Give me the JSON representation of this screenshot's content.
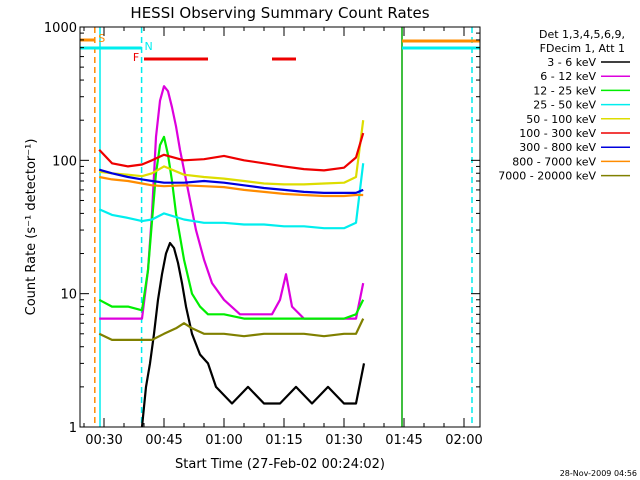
{
  "chart_data": {
    "type": "line",
    "title": "HESSI Observing Summary Count Rates",
    "xlabel": "Start Time (27-Feb-02 00:24:02)",
    "ylabel": "Count Rate (s⁻¹ detector⁻¹)",
    "y_scale": "log",
    "ylim": [
      1,
      1000
    ],
    "xlim": [
      24,
      124
    ],
    "x_unit": "minutes after 00:00 UT",
    "x_ticks": [
      {
        "value": 30,
        "label": "00:30"
      },
      {
        "value": 45,
        "label": "00:45"
      },
      {
        "value": 60,
        "label": "01:00"
      },
      {
        "value": 75,
        "label": "01:15"
      },
      {
        "value": 90,
        "label": "01:30"
      },
      {
        "value": 105,
        "label": "01:45"
      },
      {
        "value": 120,
        "label": "02:00"
      }
    ],
    "y_ticks": [
      {
        "value": 1,
        "label": "1"
      },
      {
        "value": 10,
        "label": "10"
      },
      {
        "value": 100,
        "label": "100"
      },
      {
        "value": 1000,
        "label": "1000"
      }
    ],
    "legend": {
      "placement": "right",
      "header": [
        "Det 1,3,4,5,6,9,",
        "FDecim 1, Att 1"
      ]
    },
    "series": [
      {
        "name": "3 - 6 keV",
        "color": "#000000",
        "x": [
          39.5,
          40.5,
          41.5,
          42.5,
          43.5,
          44.5,
          45.5,
          46.5,
          47.5,
          48.5,
          49.5,
          50.5,
          52,
          54,
          56,
          58,
          62,
          66,
          70,
          74,
          78,
          82,
          86,
          90,
          93,
          95
        ],
        "y": [
          1.0,
          2.0,
          3.0,
          5.0,
          9.0,
          14.0,
          20.0,
          24.0,
          22.0,
          17.0,
          12.0,
          8.0,
          5.0,
          3.5,
          3.0,
          2.0,
          1.5,
          2.0,
          1.5,
          1.5,
          2.0,
          1.5,
          2.0,
          1.5,
          1.5,
          3.0
        ]
      },
      {
        "name": "6 - 12 keV",
        "color": "#dd00dd",
        "x": [
          28.8,
          32,
          36,
          39.5,
          41,
          42,
          43,
          44,
          45,
          46,
          47,
          48,
          49,
          51,
          53,
          55,
          57,
          60,
          64,
          68,
          72,
          74,
          75.5,
          77,
          80,
          85,
          90,
          93,
          94.8
        ],
        "y": [
          6.5,
          6.5,
          6.5,
          6.5,
          15.0,
          40.0,
          150.0,
          280.0,
          360.0,
          330.0,
          250.0,
          180.0,
          120.0,
          60.0,
          30.0,
          18.0,
          12.0,
          9.0,
          7.0,
          7.0,
          7.0,
          9.0,
          14.0,
          8.0,
          6.5,
          6.5,
          6.5,
          6.5,
          12.0
        ]
      },
      {
        "name": "12 - 25 keV",
        "color": "#00ee00",
        "x": [
          28.8,
          32,
          36,
          39.5,
          41,
          42,
          43,
          44,
          45,
          46,
          47,
          48,
          50,
          52,
          54,
          56,
          60,
          65,
          70,
          75,
          80,
          85,
          90,
          93,
          94.8
        ],
        "y": [
          9.0,
          8.0,
          8.0,
          7.5,
          15.0,
          35.0,
          80.0,
          130.0,
          150.0,
          110.0,
          70.0,
          40.0,
          18.0,
          10.0,
          8.0,
          7.0,
          7.0,
          6.5,
          6.5,
          6.5,
          6.5,
          6.5,
          6.5,
          7.0,
          9.0
        ]
      },
      {
        "name": "25 - 50 keV",
        "color": "#00eeee",
        "x": [
          28.8,
          32,
          36,
          39.5,
          42,
          45,
          50,
          55,
          60,
          65,
          70,
          75,
          80,
          85,
          90,
          93,
          94.8
        ],
        "y": [
          43.0,
          39.0,
          37.0,
          35.0,
          36.0,
          40.0,
          36.0,
          34.0,
          34.0,
          33.0,
          33.0,
          32.0,
          32.0,
          31.0,
          31.0,
          34.0,
          95.0
        ]
      },
      {
        "name": "50 - 100 keV",
        "color": "#dddd00",
        "x": [
          28.8,
          32,
          36,
          39.5,
          42,
          45,
          50,
          55,
          60,
          65,
          70,
          75,
          80,
          85,
          90,
          93,
          94.8
        ],
        "y": [
          82.0,
          80.0,
          78.0,
          76.0,
          80.0,
          90.0,
          78.0,
          75.0,
          73.0,
          70.0,
          67.0,
          66.0,
          66.0,
          67.0,
          68.0,
          75.0,
          200.0
        ]
      },
      {
        "name": "100 - 300 keV",
        "color": "#ee0000",
        "x": [
          28.8,
          32,
          36,
          39.5,
          42,
          45,
          50,
          55,
          60,
          65,
          70,
          75,
          80,
          85,
          90,
          93,
          94.8
        ],
        "y": [
          120.0,
          95.0,
          90.0,
          93.0,
          100.0,
          110.0,
          100.0,
          102.0,
          108.0,
          100.0,
          95.0,
          90.0,
          86.0,
          84.0,
          88.0,
          105.0,
          160.0
        ]
      },
      {
        "name": "300 - 800 keV",
        "color": "#0000dd",
        "x": [
          28.8,
          32,
          36,
          39.5,
          42,
          45,
          50,
          55,
          60,
          65,
          70,
          75,
          80,
          85,
          90,
          93,
          94.8
        ],
        "y": [
          85.0,
          80.0,
          75.0,
          72.0,
          70.0,
          68.0,
          68.0,
          70.0,
          68.0,
          65.0,
          62.0,
          60.0,
          58.0,
          57.0,
          57.0,
          57.0,
          60.0
        ]
      },
      {
        "name": "800 - 7000 keV",
        "color": "#ff8c00",
        "x": [
          28.8,
          32,
          36,
          39.5,
          42,
          45,
          50,
          55,
          60,
          65,
          70,
          75,
          80,
          85,
          90,
          93,
          94.8
        ],
        "y": [
          75.0,
          72.0,
          70.0,
          67.0,
          65.0,
          64.0,
          65.0,
          64.0,
          63.0,
          60.0,
          58.0,
          56.0,
          55.0,
          54.0,
          54.0,
          55.0,
          55.0
        ]
      },
      {
        "name": "7000 - 20000 keV",
        "color": "#808000",
        "x": [
          28.8,
          32,
          36,
          39.5,
          42,
          45,
          48,
          50,
          52,
          55,
          60,
          65,
          70,
          75,
          80,
          85,
          90,
          93,
          94.8
        ],
        "y": [
          5.0,
          4.5,
          4.5,
          4.5,
          4.5,
          5.0,
          5.5,
          6.0,
          5.5,
          5.0,
          5.0,
          4.8,
          5.0,
          5.0,
          5.0,
          4.8,
          5.0,
          5.0,
          6.5
        ]
      }
    ],
    "markers": {
      "vertical": [
        {
          "x": 29.0,
          "color": "#00eeee",
          "style": "solid"
        },
        {
          "x": 27.7,
          "color": "#ff8c00",
          "style": "dashed"
        },
        {
          "x": 39.4,
          "color": "#00eeee",
          "style": "dashed"
        },
        {
          "x": 104.5,
          "color": "#00aa00",
          "style": "solid"
        },
        {
          "x": 122.0,
          "color": "#00eeee",
          "style": "dashed"
        }
      ],
      "bars": [
        {
          "label": "S",
          "color": "#ff8c00",
          "x_start": 24,
          "x_end": 27.7
        },
        {
          "label": "N",
          "color": "#00eeee",
          "x_start": 24,
          "x_end": 39.4
        },
        {
          "label": "F",
          "color": "#ee0000",
          "x_start": 40,
          "x_end": 56
        },
        {
          "label": "",
          "color": "#ee0000",
          "x_start": 72,
          "x_end": 78
        },
        {
          "label": "",
          "color": "#ff8c00",
          "x_start": 104.5,
          "x_end": 124
        },
        {
          "label": "",
          "color": "#00eeee",
          "x_start": 104.5,
          "x_end": 124
        }
      ]
    }
  },
  "footer": {
    "timestamp": "28-Nov-2009 04:56"
  }
}
